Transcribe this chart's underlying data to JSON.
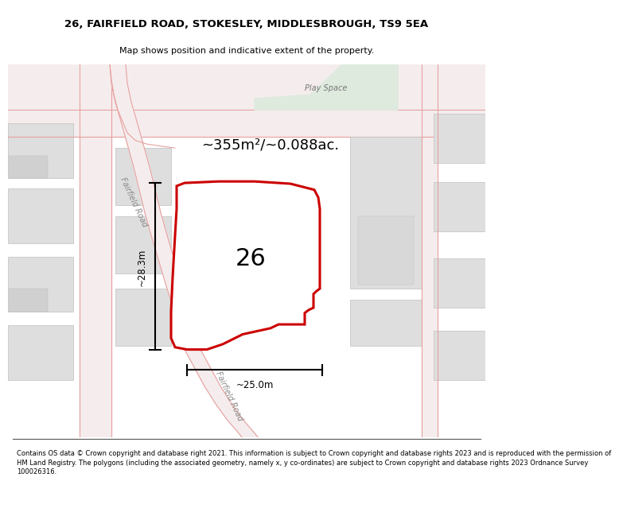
{
  "title": "26, FAIRFIELD ROAD, STOKESLEY, MIDDLESBROUGH, TS9 5EA",
  "subtitle": "Map shows position and indicative extent of the property.",
  "footer": "Contains OS data © Crown copyright and database right 2021. This information is subject to Crown copyright and database rights 2023 and is reproduced with the permission of\nHM Land Registry. The polygons (including the associated geometry, namely x, y co-ordinates) are subject to Crown copyright and database rights 2023 Ordnance Survey\n100026316.",
  "area_text": "~355m²/~0.088ac.",
  "width_text": "~25.0m",
  "height_text": "~28.3m",
  "label_26": "26",
  "play_space_text": "Play Space",
  "road_text_1": "Fairfield Road",
  "road_text_2": "Fairfield Road",
  "bg_color": "#ffffff",
  "red_outline": "#cc0000",
  "pink_road": "#e8a0a0",
  "building_fill": "#dedede",
  "building_edge": "#c0c0c0",
  "play_fill": "#deeade",
  "road_fill": "#f5eded"
}
